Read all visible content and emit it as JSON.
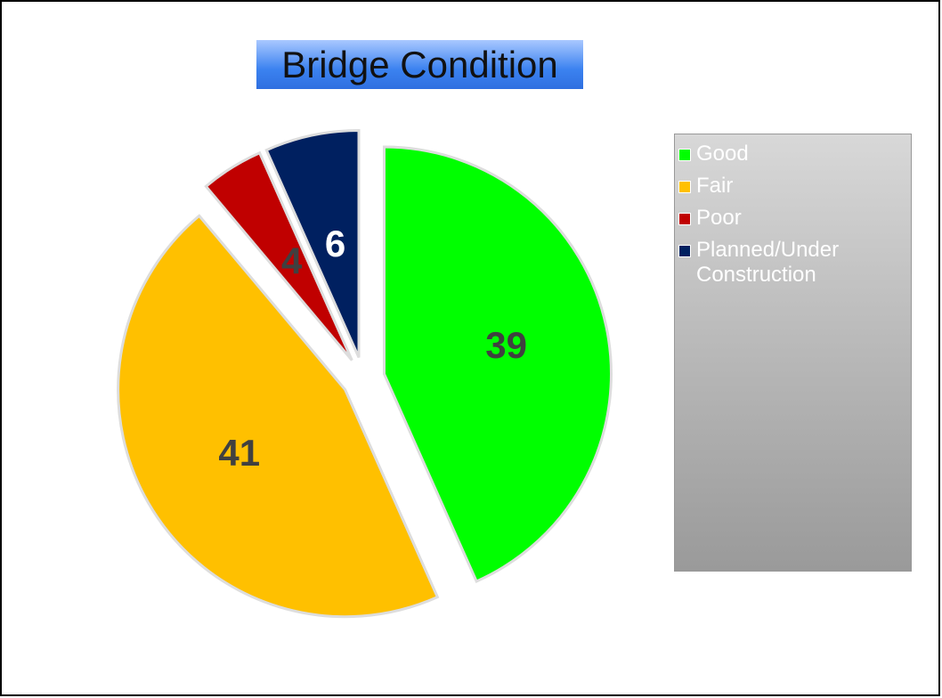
{
  "chart_data": {
    "type": "pie",
    "title": "Bridge Condition",
    "categories": [
      "Good",
      "Fair",
      "Poor",
      "Planned/Under Construction"
    ],
    "values": [
      39,
      41,
      4,
      6
    ],
    "colors": [
      "#00ff00",
      "#ffc000",
      "#c00000",
      "#002060"
    ],
    "label_colors": [
      "#404040",
      "#404040",
      "#404040",
      "#ffffff"
    ],
    "legend": "right"
  }
}
